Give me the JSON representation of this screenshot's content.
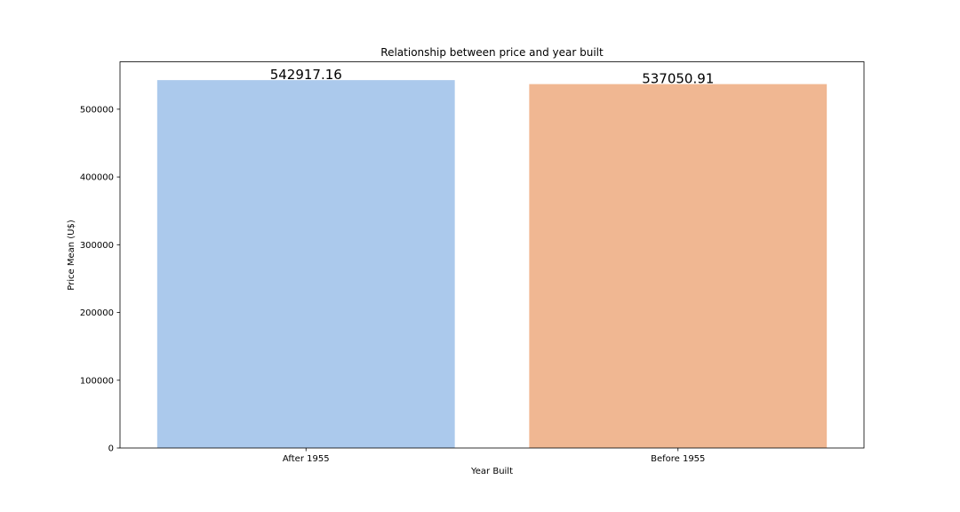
{
  "chart_data": {
    "type": "bar",
    "title": "Relationship between price and year built",
    "xlabel": "Year Built",
    "ylabel": "Price Mean (U$)",
    "categories": [
      "After 1955",
      "Before 1955"
    ],
    "values": [
      542917.16,
      537050.91
    ],
    "data_labels": [
      "542917.16",
      "537050.91"
    ],
    "ylim": [
      0,
      570000
    ],
    "yticks": [
      0,
      100000,
      200000,
      300000,
      400000,
      500000
    ],
    "ytick_labels": [
      "0",
      "100000",
      "200000",
      "300000",
      "400000",
      "500000"
    ],
    "grid": false,
    "colors": [
      "#abc9ec",
      "#f0b792"
    ]
  }
}
